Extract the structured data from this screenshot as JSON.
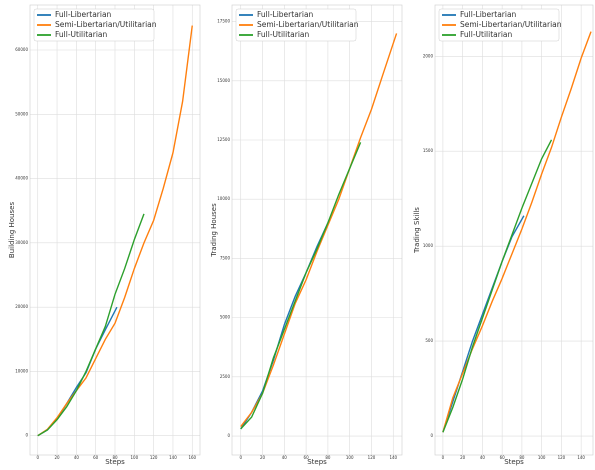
{
  "chart_data": [
    {
      "type": "line",
      "xlabel": "Steps",
      "ylabel": "Building Houses",
      "xlim": [
        -8,
        168
      ],
      "ylim": [
        -3000,
        67000
      ],
      "xticks": [
        0,
        20,
        40,
        60,
        80,
        100,
        120,
        140,
        160
      ],
      "yticks": [
        0,
        10000,
        20000,
        30000,
        40000,
        50000,
        60000
      ],
      "grid": true,
      "legend": "upper left",
      "series": [
        {
          "name": "Full-Libertarian",
          "color": "#1f77b4",
          "x": [
            0,
            10,
            20,
            30,
            40,
            50,
            60,
            70,
            82
          ],
          "values": [
            0,
            900,
            2600,
            5000,
            7500,
            9800,
            13500,
            16500,
            20000
          ]
        },
        {
          "name": "Semi-Libertarian/Utilitarian",
          "color": "#ff7f0e",
          "x": [
            0,
            10,
            20,
            30,
            40,
            50,
            60,
            70,
            80,
            90,
            100,
            110,
            120,
            130,
            140,
            150,
            160
          ],
          "values": [
            0,
            1000,
            2800,
            5000,
            7000,
            9000,
            12000,
            15000,
            17500,
            21500,
            26000,
            30000,
            33500,
            38500,
            44000,
            52000,
            63800
          ]
        },
        {
          "name": "Full-Utilitarian",
          "color": "#2ca02c",
          "x": [
            0,
            10,
            20,
            30,
            40,
            50,
            60,
            70,
            80,
            90,
            100,
            110
          ],
          "values": [
            0,
            900,
            2500,
            4500,
            7000,
            10000,
            13500,
            17000,
            22000,
            26000,
            30500,
            34500
          ]
        }
      ]
    },
    {
      "type": "line",
      "xlabel": "Steps",
      "ylabel": "Trading Houses",
      "xlim": [
        -8,
        148
      ],
      "ylim": [
        -800,
        18200
      ],
      "xticks": [
        0,
        20,
        40,
        60,
        80,
        100,
        120,
        140
      ],
      "yticks": [
        0,
        2500,
        5000,
        7500,
        10000,
        12500,
        15000,
        17500
      ],
      "grid": true,
      "legend": "upper left",
      "series": [
        {
          "name": "Full-Libertarian",
          "color": "#1f77b4",
          "x": [
            0,
            10,
            20,
            30,
            40,
            50,
            60,
            70,
            82
          ],
          "values": [
            300,
            1000,
            1900,
            3200,
            4700,
            5900,
            6900,
            8000,
            9200
          ]
        },
        {
          "name": "Semi-Libertarian/Utilitarian",
          "color": "#ff7f0e",
          "x": [
            0,
            10,
            20,
            30,
            40,
            50,
            60,
            70,
            80,
            90,
            100,
            110,
            120,
            130,
            143
          ],
          "values": [
            400,
            1000,
            1800,
            3000,
            4300,
            5600,
            6600,
            7800,
            8900,
            10000,
            11300,
            12600,
            13800,
            15200,
            17000
          ]
        },
        {
          "name": "Full-Utilitarian",
          "color": "#2ca02c",
          "x": [
            0,
            10,
            20,
            30,
            40,
            50,
            60,
            70,
            80,
            90,
            100,
            110
          ],
          "values": [
            300,
            800,
            1800,
            3300,
            4500,
            5700,
            6900,
            7900,
            9000,
            10200,
            11300,
            12400
          ]
        }
      ]
    },
    {
      "type": "line",
      "xlabel": "Steps",
      "ylabel": "Trading Skills",
      "xlim": [
        -8,
        152
      ],
      "ylim": [
        -100,
        2270
      ],
      "xticks": [
        0,
        20,
        40,
        60,
        80,
        100,
        120,
        140
      ],
      "yticks": [
        0,
        500,
        1000,
        1500,
        2000
      ],
      "grid": true,
      "legend": "upper left",
      "series": [
        {
          "name": "Full-Libertarian",
          "color": "#1f77b4",
          "x": [
            0,
            10,
            20,
            30,
            40,
            50,
            60,
            70,
            82
          ],
          "values": [
            20,
            180,
            340,
            500,
            640,
            780,
            920,
            1050,
            1160
          ]
        },
        {
          "name": "Semi-Libertarian/Utilitarian",
          "color": "#ff7f0e",
          "x": [
            0,
            10,
            20,
            30,
            40,
            50,
            60,
            70,
            80,
            90,
            100,
            110,
            120,
            130,
            140,
            150
          ],
          "values": [
            20,
            200,
            330,
            460,
            580,
            710,
            830,
            960,
            1090,
            1230,
            1380,
            1520,
            1680,
            1830,
            1990,
            2130
          ]
        },
        {
          "name": "Full-Utilitarian",
          "color": "#2ca02c",
          "x": [
            0,
            10,
            20,
            30,
            40,
            50,
            60,
            70,
            80,
            90,
            100,
            110
          ],
          "values": [
            20,
            150,
            300,
            470,
            620,
            770,
            920,
            1060,
            1200,
            1330,
            1460,
            1560
          ]
        }
      ]
    }
  ]
}
